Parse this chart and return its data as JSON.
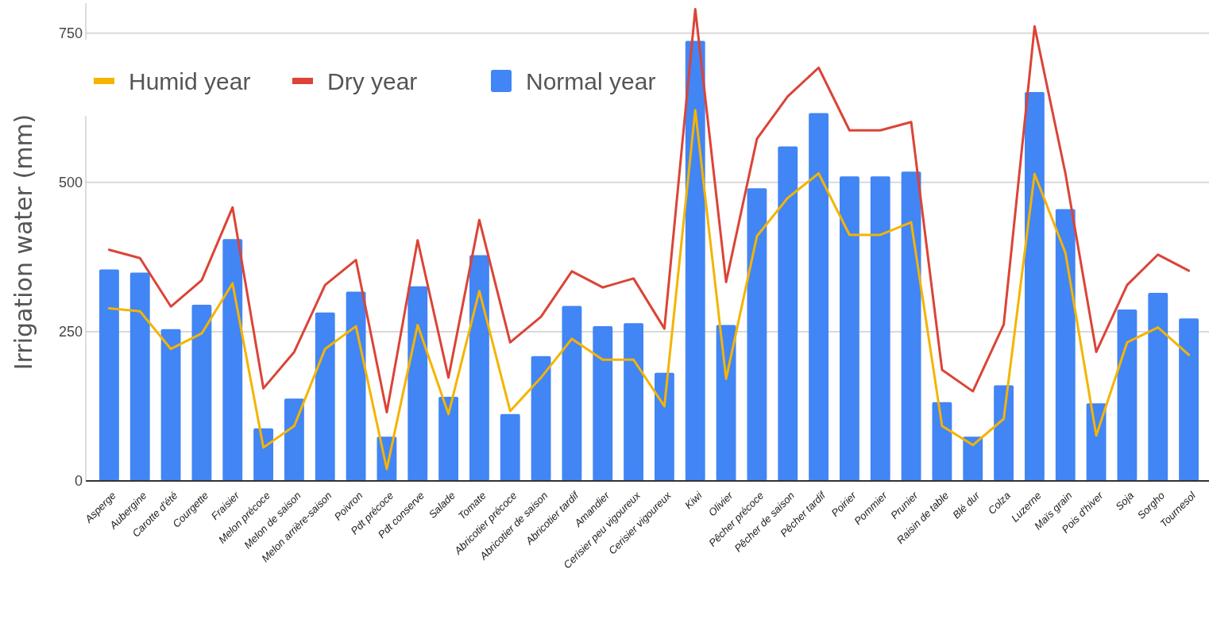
{
  "chart_data": {
    "type": "bar",
    "ylabel": "Irrigation water (mm)",
    "categories": [
      "Asperge",
      "Aubergine",
      "Carotte d'été",
      "Courgette",
      "Fraisier",
      "Melon précoce",
      "Melon de saison",
      "Melon arrière-saison",
      "Poivron",
      "Pdt précoce",
      "Pdt conserve",
      "Salade",
      "Tomate",
      "Abricotier précoce",
      "Abricotier de saison",
      "Abricotier tardif",
      "Amandier",
      "Cerisier peu vigoureux",
      "Cerisier vigoureux",
      "Kiwi",
      "Olivier",
      "Pêcher précoce",
      "Pêcher de saison",
      "Pêcher tardif",
      "Poirier",
      "Pommier",
      "Prunier",
      "Raisin de table",
      "Blé dur",
      "Colza",
      "Luzerne",
      "Maïs grain",
      "Pois d'hiver",
      "Soja",
      "Sorgho",
      "Tournesol"
    ],
    "series": [
      {
        "name": "Humid year",
        "type": "line",
        "color": "#f4b400",
        "values": [
          289,
          284,
          221,
          247,
          331,
          56,
          92,
          221,
          259,
          20,
          261,
          112,
          318,
          117,
          173,
          238,
          203,
          203,
          125,
          621,
          171,
          410,
          474,
          515,
          412,
          412,
          433,
          92,
          60,
          104,
          514,
          382,
          76,
          232,
          257,
          211
        ]
      },
      {
        "name": "Dry year",
        "type": "line",
        "color": "#db4437",
        "values": [
          387,
          373,
          292,
          336,
          458,
          155,
          216,
          328,
          370,
          115,
          403,
          173,
          437,
          232,
          275,
          351,
          324,
          339,
          255,
          790,
          333,
          573,
          644,
          692,
          587,
          587,
          601,
          186,
          150,
          262,
          761,
          515,
          216,
          328,
          379,
          352
        ]
      },
      {
        "name": "Normal year",
        "color": "#4285f4",
        "values": [
          354,
          349,
          254,
          295,
          405,
          88,
          138,
          282,
          317,
          74,
          326,
          141,
          378,
          112,
          209,
          293,
          259,
          264,
          181,
          737,
          261,
          490,
          560,
          616,
          510,
          510,
          518,
          132,
          74,
          160,
          651,
          455,
          130,
          287,
          315,
          272
        ]
      }
    ],
    "ylim": [
      0,
      800
    ],
    "yticks": [
      0,
      250,
      500,
      750
    ],
    "grid": "y",
    "legend": "top left"
  }
}
